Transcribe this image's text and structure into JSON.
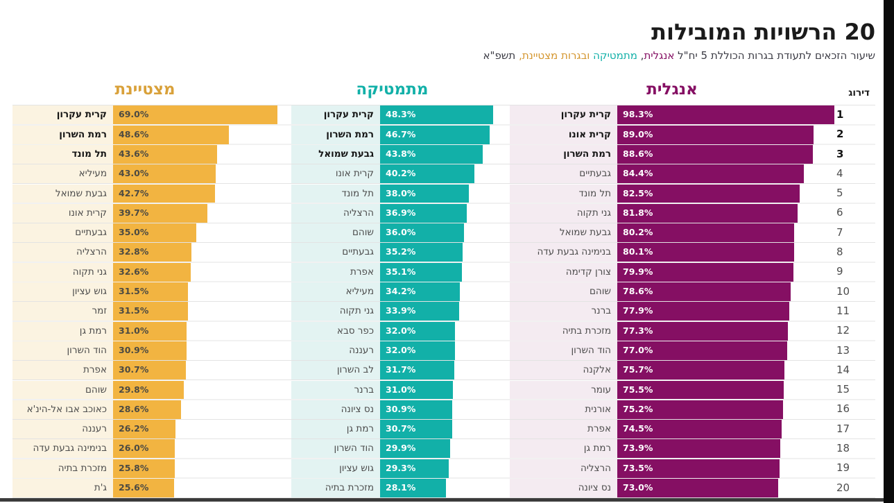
{
  "title": "20 הרשויות המובילות",
  "subtitle_segments": [
    {
      "text": "שיעור הזכאים לתעודת בגרות הכוללת 5 יח\"ל ",
      "color": "#3c3c45"
    },
    {
      "text": "אנגלית",
      "color": "#850f63"
    },
    {
      "text": ", ",
      "color": "#3c3c45"
    },
    {
      "text": "מתמטיקה",
      "color": "#12b0a8"
    },
    {
      "text": " ובגרות מצטיינת,",
      "color": "#d4962f"
    },
    {
      "text": " תשפ\"א",
      "color": "#3c3c45"
    }
  ],
  "rank_header": "דירוג",
  "ranks": [
    1,
    2,
    3,
    4,
    5,
    6,
    7,
    8,
    9,
    10,
    11,
    12,
    13,
    14,
    15,
    16,
    17,
    18,
    19,
    20
  ],
  "colors": {
    "english_bar": "#850f63",
    "english_label_bg": "#f4ebf1",
    "math_bar": "#12b0a8",
    "math_label_bg": "#e3f3f2",
    "excellence_bar": "#f2b441",
    "excellence_label_bg": "#fbf3e1",
    "value_on_dark": "#ffffff",
    "value_on_orange": "#4c4a42",
    "bottom_rule": "#3b3b3b",
    "frame_edge": "#0a0a0a",
    "hairline": "#e3e3e3"
  },
  "chart_data": [
    {
      "id": "english",
      "type": "bar",
      "title": "אנגלית",
      "bar_color": "#850f63",
      "label_bg": "#f4ebf1",
      "value_color": "#ffffff",
      "xlim": [
        0,
        98.3
      ],
      "grid": "row-hairlines",
      "legend": "none",
      "categories": [
        "קרית עקרון",
        "קרית אונו",
        "רמת השרון",
        "גבעתיים",
        "תל מונד",
        "גני תקוה",
        "גבעת שמואל",
        "בנימינה גבעת עדה",
        "צורן קדימה",
        "שוהם",
        "ברנר",
        "מזכרת בתיה",
        "הוד השרון",
        "אלקנה",
        "עומר",
        "אורנית",
        "אפרת",
        "רמת גן",
        "הרצליה",
        "נס ציונה"
      ],
      "values": [
        98.3,
        89.0,
        88.6,
        84.4,
        82.5,
        81.8,
        80.2,
        80.1,
        79.9,
        78.6,
        77.9,
        77.3,
        77.0,
        75.7,
        75.5,
        75.2,
        74.5,
        73.9,
        73.5,
        73.0
      ]
    },
    {
      "id": "math",
      "type": "bar",
      "title": "מתמטיקה",
      "bar_color": "#12b0a8",
      "label_bg": "#e3f3f2",
      "value_color": "#ffffff",
      "xlim": [
        0,
        48.3
      ],
      "grid": "row-hairlines",
      "legend": "none",
      "categories": [
        "קרית עקרון",
        "רמת השרון",
        "גבעת שמואל",
        "קרית אונו",
        "תל מונד",
        "הרצליה",
        "שוהם",
        "גבעתיים",
        "אפרת",
        "מעיליא",
        "גני תקוה",
        "כפר סבא",
        "רעננה",
        "לב השרון",
        "ברנר",
        "נס ציונה",
        "רמת גן",
        "הוד השרון",
        "גוש עציון",
        "מזכרת בתיה"
      ],
      "values": [
        48.3,
        46.7,
        43.8,
        40.2,
        38.0,
        36.9,
        36.0,
        35.2,
        35.1,
        34.2,
        33.9,
        32.0,
        32.0,
        31.7,
        31.0,
        30.9,
        30.7,
        29.9,
        29.3,
        28.1
      ]
    },
    {
      "id": "excellence",
      "type": "bar",
      "title": "מצטיינת",
      "bar_color": "#f2b441",
      "label_bg": "#fbf3e1",
      "value_color": "#4c4a42",
      "xlim": [
        0,
        69.0
      ],
      "grid": "row-hairlines",
      "legend": "none",
      "categories": [
        "קרית עקרון",
        "רמת השרון",
        "תל מונד",
        "מעיליא",
        "גבעת שמואל",
        "קרית אונו",
        "גבעתיים",
        "הרצליה",
        "גני תקוה",
        "גוש עציון",
        "זמר",
        "רמת גן",
        "הוד השרון",
        "אפרת",
        "שוהם",
        "כאוכב אבו אל-הינ'א",
        "רעננה",
        "בנימינה גבעת עדה",
        "מזכרת בתיה",
        "ג'ת"
      ],
      "values": [
        69.0,
        48.6,
        43.6,
        43.0,
        42.7,
        39.7,
        35.0,
        32.8,
        32.6,
        31.5,
        31.5,
        31.0,
        30.9,
        30.7,
        29.8,
        28.6,
        26.2,
        26.0,
        25.8,
        25.6
      ]
    }
  ]
}
